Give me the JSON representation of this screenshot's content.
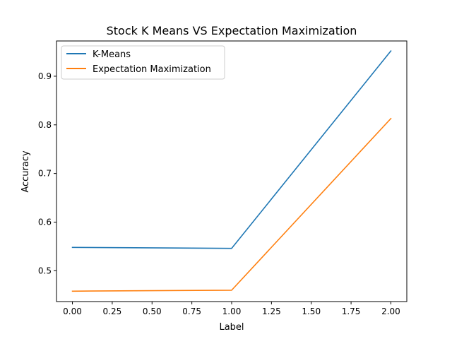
{
  "chart_data": {
    "type": "line",
    "title": "Stock K Means VS Expectation Maximization",
    "xlabel": "Label",
    "ylabel": "Accuracy",
    "x": [
      0,
      1,
      2
    ],
    "series": [
      {
        "name": "K-Means",
        "values": [
          0.548,
          0.546,
          0.952
        ],
        "color": "#1f77b4"
      },
      {
        "name": "Expectation Maximization",
        "values": [
          0.458,
          0.46,
          0.813
        ],
        "color": "#ff7f0e"
      }
    ],
    "xlim": [
      -0.1,
      2.1
    ],
    "ylim": [
      0.4366,
      0.9725
    ],
    "x_ticks": [
      "0.00",
      "0.25",
      "0.50",
      "0.75",
      "1.00",
      "1.25",
      "1.50",
      "1.75",
      "2.00"
    ],
    "y_ticks": [
      "0.5",
      "0.6",
      "0.7",
      "0.8",
      "0.9"
    ],
    "grid": false,
    "legend_position": "upper-left"
  }
}
